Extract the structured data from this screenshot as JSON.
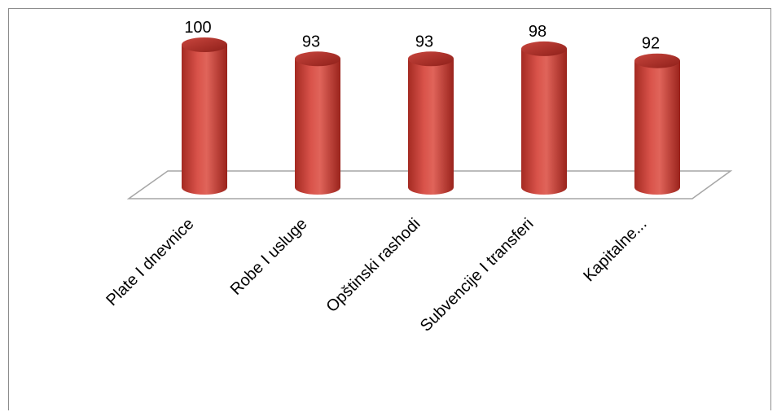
{
  "chart_data": {
    "type": "bar",
    "style": "3d-cylinder",
    "categories": [
      "Plate I dnevnice",
      "Robe I usluge",
      "Opštinski rashodi",
      "Subvencije I transferi",
      "Kapitalne..."
    ],
    "values": [
      100,
      93,
      93,
      98,
      92
    ],
    "data_labels": [
      "100",
      "93",
      "93",
      "98",
      "92"
    ],
    "title": "",
    "xlabel": "",
    "ylabel": "",
    "legend": "none",
    "grid": false,
    "bar_color": "#c0392f",
    "bar_highlight": "#e66a60",
    "bar_shadow": "#8e1f19",
    "floor_color": "#a6a6a6"
  }
}
